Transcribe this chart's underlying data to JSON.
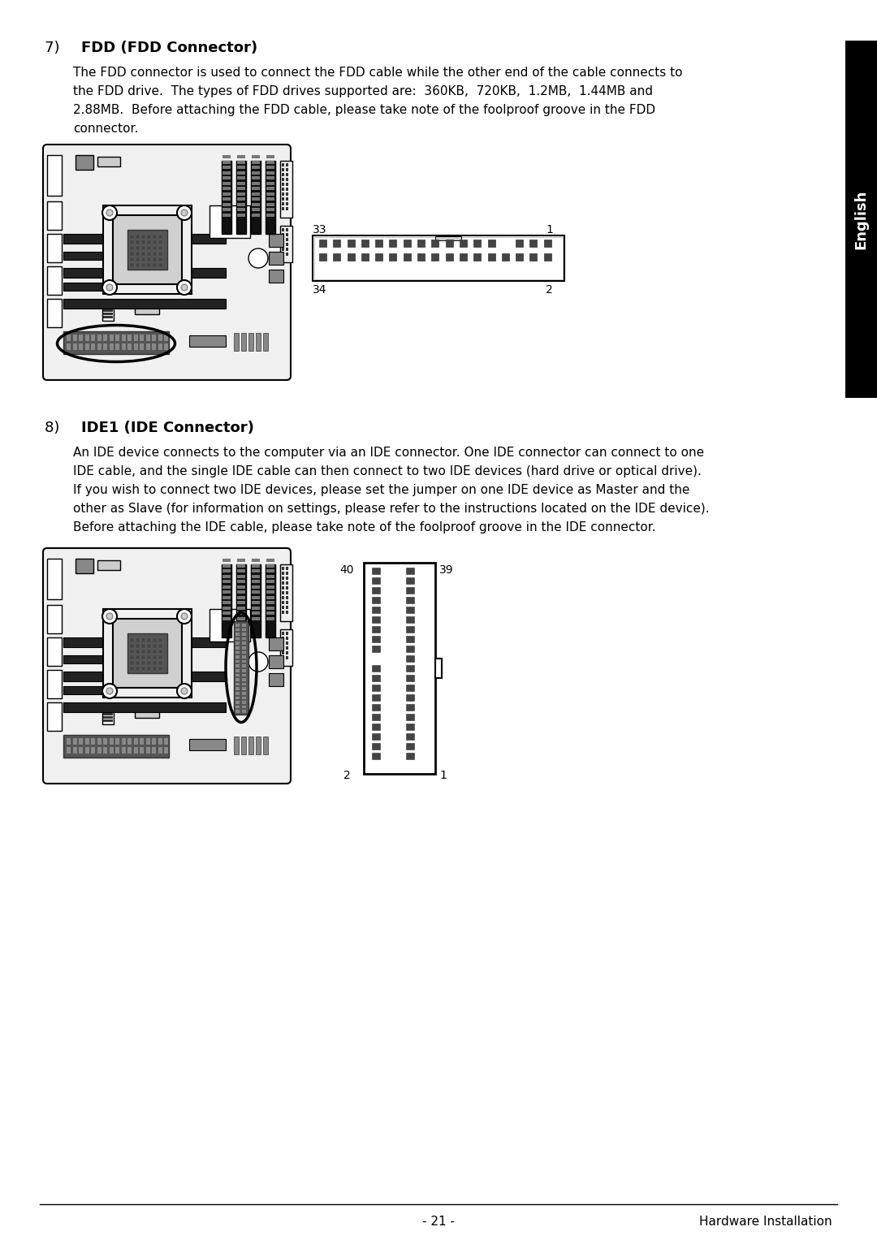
{
  "title_fdd": "7)   FDD (FDD Connector)",
  "title_ide": "8)   IDE1 (IDE Connector)",
  "fdd_line1": "The FDD connector is used to connect the FDD cable while the other end of the cable connects to",
  "fdd_line2": "the FDD drive.  The types of FDD drives supported are:  360KB,  720KB,  1.2MB,  1.44MB and",
  "fdd_line3": "2.88MB.  Before attaching the FDD cable, please take note of the foolproof groove in the FDD",
  "fdd_line4": "connector.",
  "ide_line1": "An IDE device connects to the computer via an IDE connector. One IDE connector can connect to one",
  "ide_line2": "IDE cable, and the single IDE cable can then connect to two IDE devices (hard drive or optical drive).",
  "ide_line3": "If you wish to connect two IDE devices, please set the jumper on one IDE device as Master and the",
  "ide_line4": "other as Slave (for information on settings, please refer to the instructions located on the IDE device).",
  "ide_line5": "Before attaching the IDE cable, please take note of the foolproof groove in the IDE connector.",
  "footer_center": "- 21 -",
  "footer_right": "Hardware Installation",
  "sidebar_label": "English",
  "fdd_tl": "33",
  "fdd_tr": "1",
  "fdd_bl": "34",
  "fdd_br": "2",
  "ide_tl": "40",
  "ide_tr": "39",
  "ide_bl": "2",
  "ide_br": "1",
  "bg": "#ffffff",
  "black": "#000000",
  "gray_dark": "#333333",
  "gray_mid": "#888888",
  "gray_light": "#cccccc",
  "pin_fill": "#444444",
  "board_fill": "#f0f0f0"
}
